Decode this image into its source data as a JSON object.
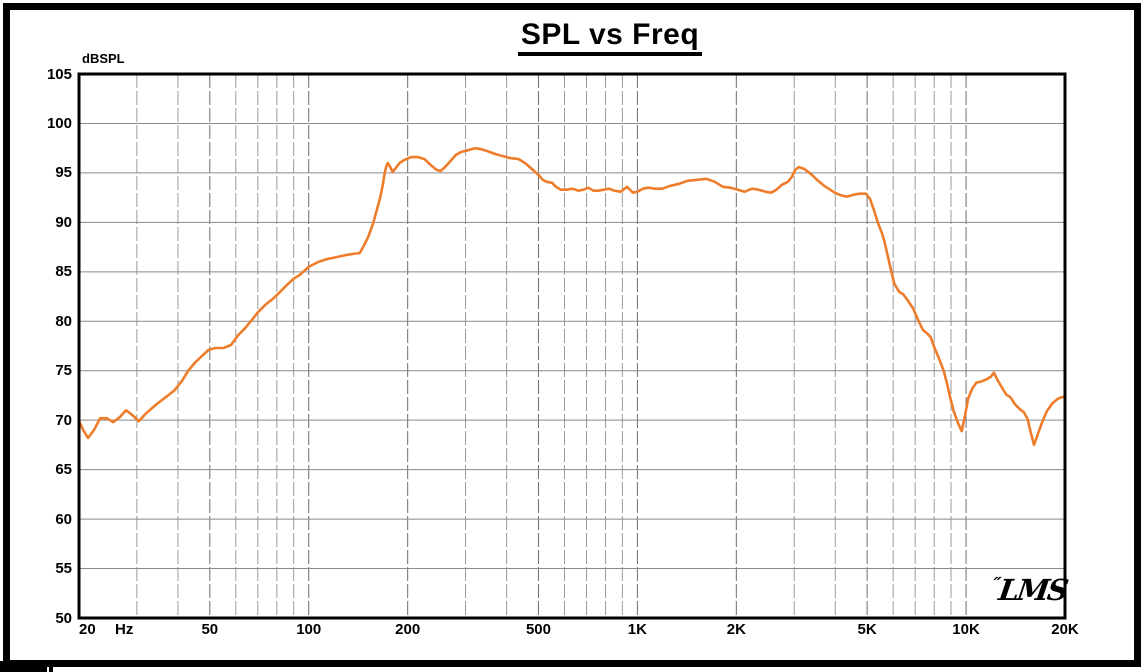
{
  "window": {
    "background": "#ffffff",
    "border_color": "#000000"
  },
  "chart_data": {
    "type": "line",
    "title": "SPL vs Freq",
    "y_unit_label": "dBSPL",
    "x_unit_label": "Hz",
    "x_scale": "log",
    "xlim": [
      20,
      20000
    ],
    "ylim": [
      50,
      105
    ],
    "grid": {
      "horizontal_style": "solid",
      "vertical_style": "dashed",
      "h_color": "#8a8a8a",
      "minor_color": "#9b9b9b",
      "major_color": "#6e6e6e"
    },
    "y_ticks": [
      105,
      100,
      95,
      90,
      85,
      80,
      75,
      70,
      65,
      60,
      55,
      50
    ],
    "x_ticks": [
      {
        "f": 20,
        "label": "20"
      },
      {
        "f": 50,
        "label": "50"
      },
      {
        "f": 100,
        "label": "100"
      },
      {
        "f": 200,
        "label": "200"
      },
      {
        "f": 500,
        "label": "500"
      },
      {
        "f": 1000,
        "label": "1K"
      },
      {
        "f": 2000,
        "label": "2K"
      },
      {
        "f": 5000,
        "label": "5K"
      },
      {
        "f": 10000,
        "label": "10K"
      },
      {
        "f": 20000,
        "label": "20K"
      }
    ],
    "logo_mark": "″",
    "logo_text": "LMS",
    "series": [
      {
        "name": "SPL",
        "color": "#ED7D2B",
        "points": [
          [
            20,
            69.9
          ],
          [
            20.6,
            69.0
          ],
          [
            21.3,
            68.2
          ],
          [
            22.2,
            69.0
          ],
          [
            23.2,
            70.2
          ],
          [
            24.3,
            70.2
          ],
          [
            25.4,
            69.8
          ],
          [
            26.6,
            70.3
          ],
          [
            27.8,
            71.0
          ],
          [
            29.1,
            70.5
          ],
          [
            30.4,
            69.9
          ],
          [
            31.8,
            70.6
          ],
          [
            33.3,
            71.2
          ],
          [
            35,
            71.8
          ],
          [
            37,
            72.4
          ],
          [
            39,
            73.0
          ],
          [
            41,
            73.9
          ],
          [
            43,
            75.0
          ],
          [
            45,
            75.8
          ],
          [
            47,
            76.4
          ],
          [
            49.5,
            77.1
          ],
          [
            52,
            77.3
          ],
          [
            55,
            77.3
          ],
          [
            58,
            77.6
          ],
          [
            61,
            78.6
          ],
          [
            64,
            79.3
          ],
          [
            67,
            80.1
          ],
          [
            70,
            80.9
          ],
          [
            74,
            81.7
          ],
          [
            78,
            82.3
          ],
          [
            82,
            83.0
          ],
          [
            86,
            83.7
          ],
          [
            90,
            84.3
          ],
          [
            94,
            84.7
          ],
          [
            100,
            85.5
          ],
          [
            107,
            86.0
          ],
          [
            114,
            86.3
          ],
          [
            122,
            86.5
          ],
          [
            130,
            86.7
          ],
          [
            136,
            86.8
          ],
          [
            143,
            86.9
          ],
          [
            148,
            87.8
          ],
          [
            152,
            88.6
          ],
          [
            157,
            89.9
          ],
          [
            161,
            91.2
          ],
          [
            165,
            92.5
          ],
          [
            168,
            93.8
          ],
          [
            170,
            94.9
          ],
          [
            172,
            95.6
          ],
          [
            174,
            96.0
          ],
          [
            177,
            95.6
          ],
          [
            180,
            95.1
          ],
          [
            184,
            95.5
          ],
          [
            189,
            96.0
          ],
          [
            195,
            96.3
          ],
          [
            205,
            96.6
          ],
          [
            215,
            96.6
          ],
          [
            225,
            96.4
          ],
          [
            235,
            95.8
          ],
          [
            245,
            95.3
          ],
          [
            252,
            95.2
          ],
          [
            260,
            95.6
          ],
          [
            270,
            96.2
          ],
          [
            280,
            96.8
          ],
          [
            290,
            97.1
          ],
          [
            305,
            97.3
          ],
          [
            320,
            97.5
          ],
          [
            335,
            97.4
          ],
          [
            350,
            97.2
          ],
          [
            370,
            96.9
          ],
          [
            390,
            96.7
          ],
          [
            410,
            96.5
          ],
          [
            435,
            96.4
          ],
          [
            455,
            96.0
          ],
          [
            470,
            95.6
          ],
          [
            485,
            95.2
          ],
          [
            500,
            94.8
          ],
          [
            515,
            94.3
          ],
          [
            530,
            94.1
          ],
          [
            550,
            94.0
          ],
          [
            565,
            93.6
          ],
          [
            585,
            93.3
          ],
          [
            610,
            93.3
          ],
          [
            635,
            93.4
          ],
          [
            660,
            93.2
          ],
          [
            685,
            93.3
          ],
          [
            710,
            93.5
          ],
          [
            735,
            93.2
          ],
          [
            760,
            93.2
          ],
          [
            790,
            93.3
          ],
          [
            820,
            93.4
          ],
          [
            850,
            93.2
          ],
          [
            890,
            93.1
          ],
          [
            930,
            93.6
          ],
          [
            970,
            93.0
          ],
          [
            1000,
            93.1
          ],
          [
            1040,
            93.4
          ],
          [
            1080,
            93.5
          ],
          [
            1130,
            93.4
          ],
          [
            1190,
            93.4
          ],
          [
            1260,
            93.7
          ],
          [
            1340,
            93.9
          ],
          [
            1420,
            94.2
          ],
          [
            1520,
            94.3
          ],
          [
            1620,
            94.4
          ],
          [
            1720,
            94.1
          ],
          [
            1820,
            93.6
          ],
          [
            1920,
            93.5
          ],
          [
            2020,
            93.3
          ],
          [
            2120,
            93.1
          ],
          [
            2230,
            93.4
          ],
          [
            2340,
            93.3
          ],
          [
            2450,
            93.1
          ],
          [
            2550,
            93.0
          ],
          [
            2650,
            93.3
          ],
          [
            2750,
            93.8
          ],
          [
            2870,
            94.1
          ],
          [
            2950,
            94.6
          ],
          [
            3020,
            95.3
          ],
          [
            3100,
            95.6
          ],
          [
            3220,
            95.4
          ],
          [
            3370,
            94.9
          ],
          [
            3520,
            94.3
          ],
          [
            3700,
            93.7
          ],
          [
            3900,
            93.2
          ],
          [
            4050,
            92.9
          ],
          [
            4200,
            92.7
          ],
          [
            4350,
            92.6
          ],
          [
            4550,
            92.8
          ],
          [
            4750,
            92.9
          ],
          [
            4950,
            92.9
          ],
          [
            5100,
            92.4
          ],
          [
            5250,
            91.2
          ],
          [
            5400,
            89.9
          ],
          [
            5550,
            88.9
          ],
          [
            5650,
            88.0
          ],
          [
            5750,
            86.9
          ],
          [
            5900,
            85.3
          ],
          [
            6050,
            83.8
          ],
          [
            6250,
            83.0
          ],
          [
            6450,
            82.7
          ],
          [
            6650,
            82.1
          ],
          [
            6900,
            81.3
          ],
          [
            7150,
            80.1
          ],
          [
            7400,
            79.1
          ],
          [
            7600,
            78.8
          ],
          [
            7800,
            78.4
          ],
          [
            8000,
            77.4
          ],
          [
            8300,
            76.1
          ],
          [
            8550,
            75.0
          ],
          [
            8750,
            73.7
          ],
          [
            8950,
            72.3
          ],
          [
            9150,
            71.0
          ],
          [
            9450,
            69.7
          ],
          [
            9700,
            68.9
          ],
          [
            9950,
            70.6
          ],
          [
            10150,
            72.2
          ],
          [
            10450,
            73.2
          ],
          [
            10750,
            73.8
          ],
          [
            11100,
            73.9
          ],
          [
            11500,
            74.1
          ],
          [
            11900,
            74.4
          ],
          [
            12150,
            74.8
          ],
          [
            12450,
            74.1
          ],
          [
            12850,
            73.3
          ],
          [
            13250,
            72.6
          ],
          [
            13650,
            72.3
          ],
          [
            14100,
            71.6
          ],
          [
            14600,
            71.1
          ],
          [
            15000,
            70.8
          ],
          [
            15400,
            70.1
          ],
          [
            15700,
            68.9
          ],
          [
            16100,
            67.5
          ],
          [
            16500,
            68.5
          ],
          [
            17000,
            69.7
          ],
          [
            17600,
            70.9
          ],
          [
            18300,
            71.7
          ],
          [
            19100,
            72.2
          ],
          [
            20000,
            72.4
          ]
        ]
      }
    ]
  }
}
